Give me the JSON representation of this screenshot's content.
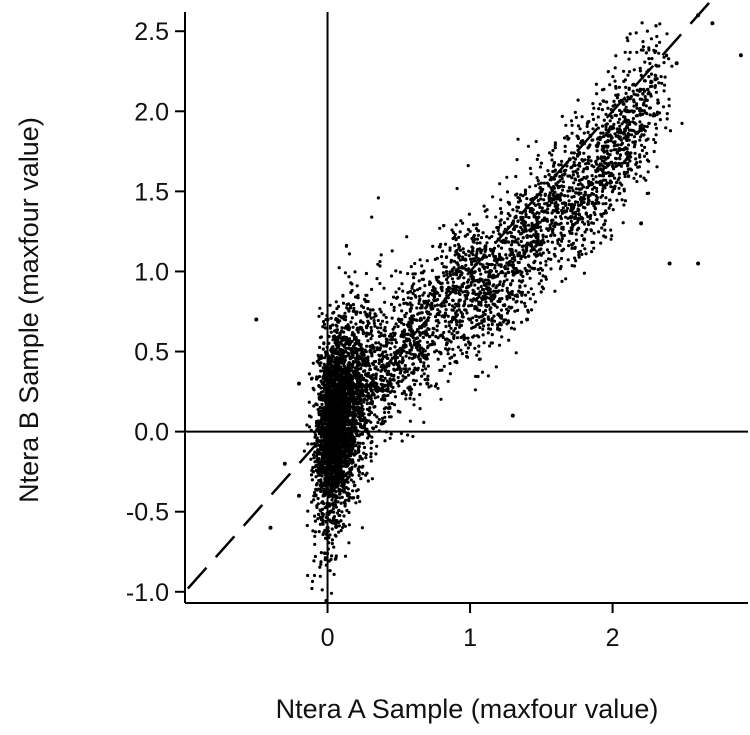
{
  "chart_data": {
    "type": "scatter",
    "xlabel": "Ntera A Sample (maxfour value)",
    "ylabel": "Ntera B Sample (maxfour value)",
    "xlim": [
      -1.0,
      2.95
    ],
    "ylim": [
      -1.07,
      2.62
    ],
    "x_ticks": [
      0,
      1,
      2
    ],
    "x_tick_labels": [
      "0",
      "1",
      "2"
    ],
    "y_ticks": [
      -1.0,
      -0.5,
      0.0,
      0.5,
      1.0,
      1.5,
      2.0,
      2.5
    ],
    "y_tick_labels": [
      "-1.0",
      "-0.5",
      "0.0",
      "0.5",
      "1.0",
      "1.5",
      "2.0",
      "2.5"
    ],
    "reference_lines": {
      "x_zero": 0,
      "y_zero": 0,
      "diagonal": {
        "style": "dashed",
        "slope": 1,
        "intercept": 0
      }
    },
    "grid": false,
    "legend": "none",
    "point_color": "#000000",
    "series": [
      {
        "points": [
          [
            0.0,
            -0.6
          ],
          [
            0.02,
            -0.5
          ],
          [
            0.05,
            -0.3
          ],
          [
            0.0,
            -0.1
          ],
          [
            0.05,
            0.0
          ],
          [
            0.02,
            0.1
          ],
          [
            0.1,
            0.2
          ],
          [
            0.05,
            0.3
          ],
          [
            0.15,
            0.4
          ],
          [
            0.1,
            0.5
          ],
          [
            0.2,
            0.5
          ],
          [
            0.3,
            0.5
          ],
          [
            0.4,
            0.6
          ],
          [
            0.5,
            0.7
          ],
          [
            0.6,
            0.7
          ],
          [
            0.7,
            0.8
          ],
          [
            0.8,
            0.9
          ],
          [
            0.9,
            0.9
          ],
          [
            1.0,
            1.0
          ],
          [
            1.1,
            1.1
          ],
          [
            1.2,
            1.2
          ],
          [
            1.3,
            1.3
          ],
          [
            1.4,
            1.4
          ],
          [
            1.5,
            1.5
          ],
          [
            1.6,
            1.6
          ],
          [
            1.7,
            1.7
          ],
          [
            1.8,
            1.8
          ],
          [
            1.9,
            1.8
          ],
          [
            2.0,
            1.9
          ],
          [
            2.1,
            2.0
          ],
          [
            0.5,
            0.4
          ],
          [
            0.8,
            0.6
          ],
          [
            1.0,
            0.7
          ],
          [
            1.3,
            1.0
          ],
          [
            1.6,
            1.3
          ],
          [
            -0.2,
            -0.4
          ],
          [
            -0.3,
            -0.2
          ],
          [
            -0.4,
            -0.6
          ],
          [
            -0.2,
            0.3
          ],
          [
            0.0,
            0.7
          ],
          [
            -0.5,
            0.7
          ],
          [
            2.3,
            2.2
          ],
          [
            2.45,
            2.3
          ],
          [
            2.6,
            2.6
          ],
          [
            2.7,
            2.55
          ],
          [
            2.9,
            2.35
          ],
          [
            2.4,
            1.05
          ],
          [
            2.6,
            1.05
          ],
          [
            2.2,
            1.3
          ],
          [
            1.3,
            0.1
          ],
          [
            0.4,
            0.2
          ],
          [
            0.7,
            0.3
          ],
          [
            1.4,
            0.7
          ],
          [
            1.8,
            1.2
          ],
          [
            2.0,
            1.6
          ]
        ],
        "cloud": {
          "segments": [
            {
              "x_start": 0.0,
              "x_end": 0.3,
              "y_center": -0.25,
              "y_spread": 0.9
            },
            {
              "x_start": 0.3,
              "x_end": 1.0,
              "y_center": 0.62,
              "y_spread": 0.55
            },
            {
              "x_start": 1.0,
              "x_end": 1.7,
              "y_center": 1.15,
              "y_spread": 0.55
            },
            {
              "x_start": 1.7,
              "x_end": 2.3,
              "y_center": 1.75,
              "y_spread": 0.55
            }
          ]
        }
      }
    ]
  }
}
